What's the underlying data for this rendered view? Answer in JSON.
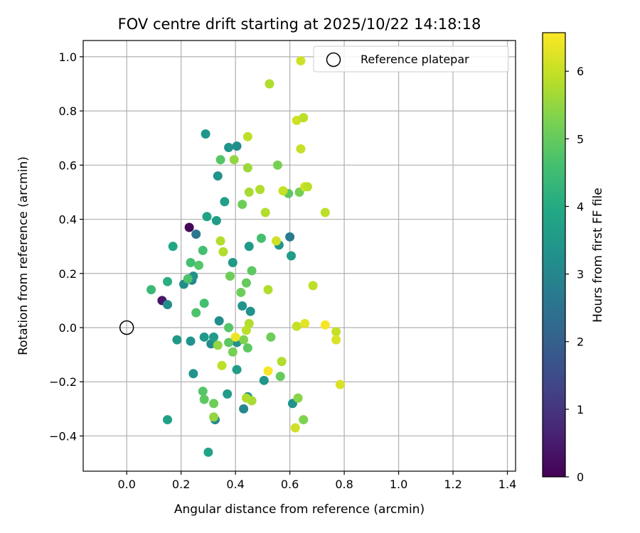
{
  "chart_data": {
    "type": "scatter",
    "title": "FOV centre drift starting at 2025/10/22 14:18:18",
    "xlabel": "Angular distance from reference (arcmin)",
    "ylabel": "Rotation from reference (arcmin)",
    "xlim": [
      -0.16,
      1.43
    ],
    "ylim": [
      -0.53,
      1.06
    ],
    "xticks": [
      0.0,
      0.2,
      0.4,
      0.6,
      0.8,
      1.0,
      1.2,
      1.4
    ],
    "xtick_labels": [
      "0.0",
      "0.2",
      "0.4",
      "0.6",
      "0.8",
      "1.0",
      "1.2",
      "1.4"
    ],
    "yticks": [
      -0.4,
      -0.2,
      0.0,
      0.2,
      0.4,
      0.6,
      0.8,
      1.0
    ],
    "ytick_labels": [
      "−0.4",
      "−0.2",
      "0.0",
      "0.2",
      "0.4",
      "0.6",
      "0.8",
      "1.0"
    ],
    "grid": true,
    "legend": {
      "position": "top-right",
      "entries": [
        "Reference platepar"
      ]
    },
    "reference_point": {
      "x": 0.0,
      "y": 0.0,
      "label": "Reference platepar"
    },
    "colorbar": {
      "label": "Hours from first FF file",
      "range": [
        0,
        6.57
      ],
      "ticks": [
        0,
        1,
        2,
        3,
        4,
        5,
        6
      ],
      "tick_labels": [
        "0",
        "1",
        "2",
        "3",
        "4",
        "5",
        "6"
      ],
      "colormap": "viridis"
    },
    "points": [
      {
        "x": 0.23,
        "y": 0.37,
        "h": 0.1
      },
      {
        "x": 0.13,
        "y": 0.1,
        "h": 0.4
      },
      {
        "x": 0.255,
        "y": 0.345,
        "h": 2.6
      },
      {
        "x": 0.6,
        "y": 0.335,
        "h": 2.7
      },
      {
        "x": 0.15,
        "y": 0.085,
        "h": 3.2
      },
      {
        "x": 0.21,
        "y": 0.16,
        "h": 3.2
      },
      {
        "x": 0.24,
        "y": 0.175,
        "h": 3.1
      },
      {
        "x": 0.245,
        "y": 0.19,
        "h": 3.3
      },
      {
        "x": 0.17,
        "y": 0.3,
        "h": 3.9
      },
      {
        "x": 0.295,
        "y": 0.41,
        "h": 3.8
      },
      {
        "x": 0.33,
        "y": 0.395,
        "h": 3.6
      },
      {
        "x": 0.36,
        "y": 0.465,
        "h": 3.7
      },
      {
        "x": 0.335,
        "y": 0.56,
        "h": 3.3
      },
      {
        "x": 0.29,
        "y": 0.715,
        "h": 3.4
      },
      {
        "x": 0.375,
        "y": 0.665,
        "h": 3.3
      },
      {
        "x": 0.405,
        "y": 0.67,
        "h": 3.2
      },
      {
        "x": 0.39,
        "y": 0.24,
        "h": 3.5
      },
      {
        "x": 0.45,
        "y": 0.3,
        "h": 3.5
      },
      {
        "x": 0.56,
        "y": 0.305,
        "h": 3.4
      },
      {
        "x": 0.605,
        "y": 0.265,
        "h": 3.6
      },
      {
        "x": 0.34,
        "y": 0.025,
        "h": 3.2
      },
      {
        "x": 0.425,
        "y": 0.08,
        "h": 3.4
      },
      {
        "x": 0.455,
        "y": 0.06,
        "h": 3.3
      },
      {
        "x": 0.185,
        "y": -0.045,
        "h": 3.5
      },
      {
        "x": 0.235,
        "y": -0.05,
        "h": 3.3
      },
      {
        "x": 0.285,
        "y": -0.035,
        "h": 3.5
      },
      {
        "x": 0.31,
        "y": -0.06,
        "h": 3.2
      },
      {
        "x": 0.32,
        "y": -0.035,
        "h": 3.6
      },
      {
        "x": 0.245,
        "y": -0.17,
        "h": 3.4
      },
      {
        "x": 0.405,
        "y": -0.155,
        "h": 3.6
      },
      {
        "x": 0.505,
        "y": -0.195,
        "h": 3.4
      },
      {
        "x": 0.37,
        "y": -0.245,
        "h": 3.6
      },
      {
        "x": 0.445,
        "y": -0.255,
        "h": 3.3
      },
      {
        "x": 0.43,
        "y": -0.3,
        "h": 3.0
      },
      {
        "x": 0.61,
        "y": -0.28,
        "h": 3.3
      },
      {
        "x": 0.325,
        "y": -0.34,
        "h": 3.0
      },
      {
        "x": 0.15,
        "y": -0.34,
        "h": 3.7
      },
      {
        "x": 0.3,
        "y": -0.46,
        "h": 3.8
      },
      {
        "x": 0.405,
        "y": -0.055,
        "h": 3.3
      },
      {
        "x": 0.09,
        "y": 0.14,
        "h": 4.4
      },
      {
        "x": 0.15,
        "y": 0.17,
        "h": 4.1
      },
      {
        "x": 0.225,
        "y": 0.18,
        "h": 4.7
      },
      {
        "x": 0.235,
        "y": 0.24,
        "h": 4.6
      },
      {
        "x": 0.265,
        "y": 0.23,
        "h": 4.8
      },
      {
        "x": 0.28,
        "y": 0.285,
        "h": 4.6
      },
      {
        "x": 0.255,
        "y": 0.055,
        "h": 4.7
      },
      {
        "x": 0.285,
        "y": 0.09,
        "h": 4.6
      },
      {
        "x": 0.345,
        "y": 0.62,
        "h": 4.8
      },
      {
        "x": 0.38,
        "y": 0.19,
        "h": 5.1
      },
      {
        "x": 0.42,
        "y": 0.13,
        "h": 5.1
      },
      {
        "x": 0.44,
        "y": 0.165,
        "h": 5.0
      },
      {
        "x": 0.46,
        "y": 0.21,
        "h": 4.9
      },
      {
        "x": 0.425,
        "y": 0.455,
        "h": 5.1
      },
      {
        "x": 0.495,
        "y": 0.33,
        "h": 4.6
      },
      {
        "x": 0.555,
        "y": 0.6,
        "h": 5.2
      },
      {
        "x": 0.595,
        "y": 0.495,
        "h": 4.9
      },
      {
        "x": 0.635,
        "y": 0.5,
        "h": 5.2
      },
      {
        "x": 0.375,
        "y": 0.0,
        "h": 4.8
      },
      {
        "x": 0.375,
        "y": -0.055,
        "h": 4.9
      },
      {
        "x": 0.39,
        "y": -0.09,
        "h": 5.2
      },
      {
        "x": 0.43,
        "y": -0.045,
        "h": 5.3
      },
      {
        "x": 0.445,
        "y": -0.075,
        "h": 4.9
      },
      {
        "x": 0.53,
        "y": -0.035,
        "h": 5.1
      },
      {
        "x": 0.565,
        "y": -0.18,
        "h": 5.0
      },
      {
        "x": 0.28,
        "y": -0.235,
        "h": 4.8
      },
      {
        "x": 0.285,
        "y": -0.265,
        "h": 4.9
      },
      {
        "x": 0.32,
        "y": -0.28,
        "h": 5.1
      },
      {
        "x": 0.65,
        "y": -0.34,
        "h": 5.3
      },
      {
        "x": 0.63,
        "y": -0.26,
        "h": 5.4
      },
      {
        "x": 0.335,
        "y": -0.065,
        "h": 5.5
      },
      {
        "x": 0.32,
        "y": -0.33,
        "h": 5.5
      },
      {
        "x": 0.395,
        "y": 0.62,
        "h": 5.5
      },
      {
        "x": 0.445,
        "y": 0.59,
        "h": 5.6
      },
      {
        "x": 0.45,
        "y": 0.5,
        "h": 5.7
      },
      {
        "x": 0.49,
        "y": 0.51,
        "h": 5.8
      },
      {
        "x": 0.51,
        "y": 0.425,
        "h": 5.8
      },
      {
        "x": 0.345,
        "y": 0.32,
        "h": 5.8
      },
      {
        "x": 0.355,
        "y": 0.28,
        "h": 5.8
      },
      {
        "x": 0.525,
        "y": 0.9,
        "h": 5.8
      },
      {
        "x": 0.445,
        "y": 0.705,
        "h": 5.9
      },
      {
        "x": 0.52,
        "y": 0.14,
        "h": 5.8
      },
      {
        "x": 0.45,
        "y": 0.015,
        "h": 5.8
      },
      {
        "x": 0.44,
        "y": -0.01,
        "h": 5.9
      },
      {
        "x": 0.35,
        "y": -0.14,
        "h": 5.9
      },
      {
        "x": 0.46,
        "y": -0.27,
        "h": 5.7
      },
      {
        "x": 0.44,
        "y": -0.26,
        "h": 5.8
      },
      {
        "x": 0.57,
        "y": -0.125,
        "h": 5.8
      },
      {
        "x": 0.55,
        "y": 0.32,
        "h": 6.1
      },
      {
        "x": 0.575,
        "y": 0.505,
        "h": 6.0
      },
      {
        "x": 0.625,
        "y": 0.765,
        "h": 6.1
      },
      {
        "x": 0.64,
        "y": 0.66,
        "h": 6.0
      },
      {
        "x": 0.65,
        "y": 0.775,
        "h": 5.9
      },
      {
        "x": 0.655,
        "y": 0.52,
        "h": 6.1
      },
      {
        "x": 0.665,
        "y": 0.52,
        "h": 5.9
      },
      {
        "x": 0.64,
        "y": 0.985,
        "h": 6.1
      },
      {
        "x": 0.685,
        "y": 0.155,
        "h": 5.9
      },
      {
        "x": 0.73,
        "y": 0.425,
        "h": 5.9
      },
      {
        "x": 0.625,
        "y": 0.005,
        "h": 6.0
      },
      {
        "x": 0.655,
        "y": 0.015,
        "h": 6.3
      },
      {
        "x": 0.77,
        "y": -0.015,
        "h": 6.0
      },
      {
        "x": 0.77,
        "y": -0.045,
        "h": 6.2
      },
      {
        "x": 0.785,
        "y": -0.21,
        "h": 6.2
      },
      {
        "x": 0.62,
        "y": -0.37,
        "h": 6.1
      },
      {
        "x": 0.4,
        "y": -0.035,
        "h": 6.4
      },
      {
        "x": 0.52,
        "y": -0.16,
        "h": 6.5
      },
      {
        "x": 0.73,
        "y": 0.01,
        "h": 6.5
      }
    ]
  }
}
